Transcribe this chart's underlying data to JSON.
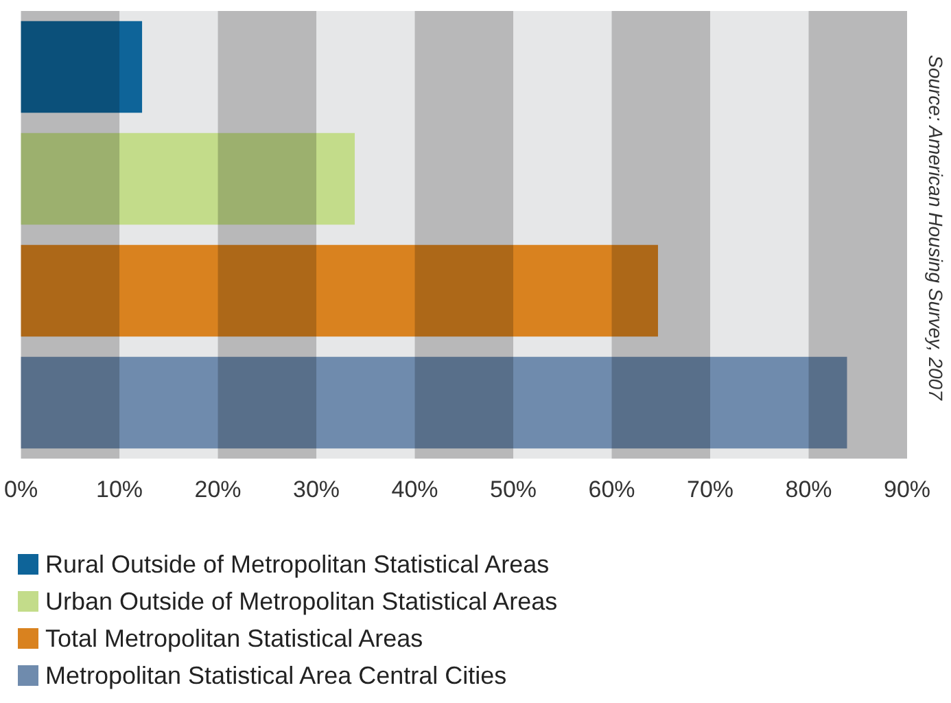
{
  "chart_data": {
    "type": "bar",
    "orientation": "horizontal",
    "categories": [
      null,
      null,
      null,
      null
    ],
    "series": [
      {
        "name": "Rural Outside of Metropolitan Statistical Areas",
        "color": "#0e6499",
        "values": [
          12.3,
          null,
          null,
          null
        ]
      },
      {
        "name": "Urban Outside of Metropolitan Statistical Areas",
        "color": "#c3dc8a",
        "values": [
          null,
          33.9,
          null,
          null
        ]
      },
      {
        "name": "Total Metropolitan Statistical Areas",
        "color": "#d9821f",
        "values": [
          null,
          null,
          64.7,
          null
        ]
      },
      {
        "name": "Metropolitan Statistical Area Central Cities",
        "color": "#6f8bad",
        "values": [
          null,
          null,
          null,
          83.9
        ]
      }
    ],
    "xlim": [
      0,
      90
    ],
    "xticks": [
      {
        "value": 0,
        "label": "0%"
      },
      {
        "value": 10,
        "label": "10%"
      },
      {
        "value": 20,
        "label": "20%"
      },
      {
        "value": 30,
        "label": "30%"
      },
      {
        "value": 40,
        "label": "40%"
      },
      {
        "value": 50,
        "label": "50%"
      },
      {
        "value": 60,
        "label": "60%"
      },
      {
        "value": 70,
        "label": "70%"
      },
      {
        "value": 80,
        "label": "80%"
      },
      {
        "value": 90,
        "label": "90%"
      }
    ],
    "bands": [
      {
        "axis": "x",
        "from": 0,
        "to": 10
      },
      {
        "axis": "x",
        "from": 20,
        "to": 30
      },
      {
        "axis": "x",
        "from": 40,
        "to": 50
      },
      {
        "axis": "x",
        "from": 60,
        "to": 70
      },
      {
        "axis": "x",
        "from": 80,
        "to": 90
      }
    ],
    "legend": "bottom",
    "stacked": true,
    "annotations": [
      "Source: American Housing Survey, 2007"
    ]
  }
}
